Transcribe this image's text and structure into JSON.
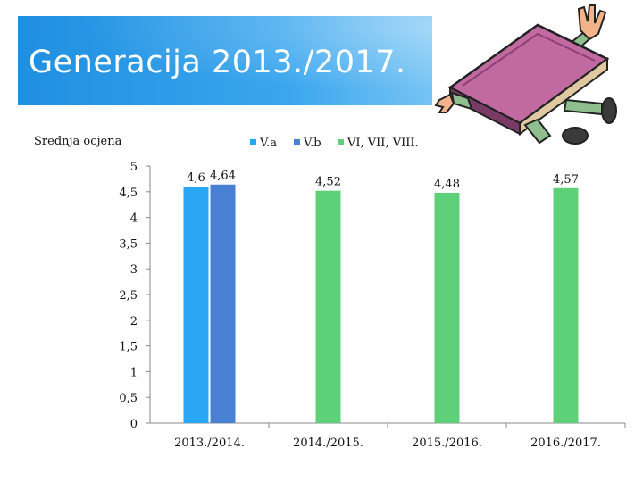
{
  "slide": {
    "title": "Generacija 2013./2017."
  },
  "chart_data": {
    "type": "bar",
    "ylabel": "Srednja ocjena",
    "ylim": [
      0,
      5
    ],
    "y_ticks": [
      "0",
      "0,5",
      "1",
      "1,5",
      "2",
      "2,5",
      "3",
      "3,5",
      "4",
      "4,5",
      "5"
    ],
    "categories": [
      "2013./2014.",
      "2014./2015.",
      "2015./2016.",
      "2016./2017."
    ],
    "legend_position": "top",
    "grid": false,
    "series": [
      {
        "name": "V.a",
        "color": "#2aa7f2",
        "values": [
          4.6,
          null,
          null,
          null
        ],
        "labels": [
          "4,6",
          null,
          null,
          null
        ]
      },
      {
        "name": "V.b",
        "color": "#4a80d4",
        "values": [
          4.64,
          null,
          null,
          null
        ],
        "labels": [
          "4,64",
          null,
          null,
          null
        ]
      },
      {
        "name": "VI, VII, VIII.",
        "color": "#5fd07a",
        "values": [
          null,
          4.52,
          4.48,
          4.57
        ],
        "labels": [
          null,
          "4,52",
          "4,48",
          "4,57"
        ]
      }
    ]
  }
}
